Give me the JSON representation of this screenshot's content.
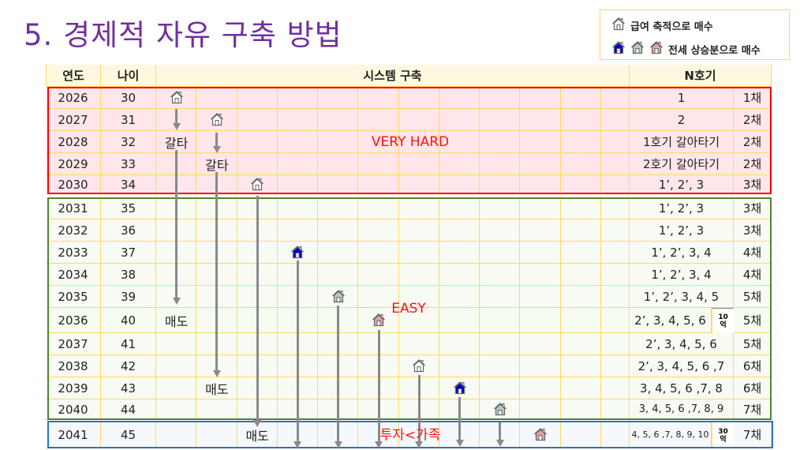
{
  "title": "5. 경제적 자유 구축 방법",
  "legend": {
    "salary_label": "급여 축적으로 매수",
    "jeonse_label": "전세 상승분으로 매수"
  },
  "colors": {
    "title": "#7030A0",
    "hard_box": "#FF0000",
    "easy_box": "#548235",
    "final_box": "#2E75B6",
    "house_white": "#FFFFFF",
    "house_blue": "#0000CC",
    "house_gray": "#B4CCC8",
    "house_pink": "#E0A4A4"
  },
  "table": {
    "headers": [
      "연도",
      "나이",
      "시스템 구축",
      "N호기"
    ],
    "rows": [
      {
        "year": "2026",
        "age": "30",
        "units": "1",
        "count": "1채"
      },
      {
        "year": "2027",
        "age": "31",
        "units": "2",
        "count": "2채"
      },
      {
        "year": "2028",
        "age": "32",
        "units": "1호기 갈아타기",
        "count": "2채"
      },
      {
        "year": "2029",
        "age": "33",
        "units": "2호기 갈아타기",
        "count": "2채"
      },
      {
        "year": "2030",
        "age": "34",
        "units": "1’, 2’, 3",
        "count": "3채"
      },
      {
        "year": "2031",
        "age": "35",
        "units": "1’, 2’, 3",
        "count": "3채"
      },
      {
        "year": "2032",
        "age": "36",
        "units": "1’, 2’, 3",
        "count": "3채"
      },
      {
        "year": "2033",
        "age": "37",
        "units": "1’, 2’, 3, 4",
        "count": "4채"
      },
      {
        "year": "2034",
        "age": "38",
        "units": "1’, 2’, 3, 4",
        "count": "4채"
      },
      {
        "year": "2035",
        "age": "39",
        "units": "1’, 2’, 3, 4, 5",
        "count": "5채"
      },
      {
        "year": "2036",
        "age": "40",
        "units": "2’, 3, 4, 5, 6",
        "count": "5채",
        "note": [
          "10",
          "억"
        ]
      },
      {
        "year": "2037",
        "age": "41",
        "units": "2’, 3, 4, 5, 6",
        "count": "5채"
      },
      {
        "year": "2038",
        "age": "42",
        "units": "2’, 3, 4, 5, 6 ,7",
        "count": "6채"
      },
      {
        "year": "2039",
        "age": "43",
        "units": "3, 4, 5, 6 ,7, 8",
        "count": "6채"
      },
      {
        "year": "2040",
        "age": "44",
        "units": "3, 4, 5, 6 ,7, 8, 9",
        "count": "7채"
      },
      {
        "year": "2041",
        "age": "45",
        "units": "4, 5, 6 ,7, 8, 9, 10",
        "count": "7채",
        "note": [
          "30",
          "억"
        ]
      }
    ]
  },
  "houses": [
    {
      "row": 0,
      "col": 0,
      "type": "white"
    },
    {
      "row": 1,
      "col": 1,
      "type": "white"
    },
    {
      "row": 4,
      "col": 2,
      "type": "white"
    },
    {
      "row": 7,
      "col": 3,
      "type": "blue"
    },
    {
      "row": 9,
      "col": 4,
      "type": "gray"
    },
    {
      "row": 10,
      "col": 5,
      "type": "pink"
    },
    {
      "row": 12,
      "col": 6,
      "type": "white"
    },
    {
      "row": 13,
      "col": 7,
      "type": "blue"
    },
    {
      "row": 14,
      "col": 8,
      "type": "gray"
    },
    {
      "row": 15,
      "col": 9,
      "type": "pink"
    }
  ],
  "cell_labels": [
    {
      "row": 2,
      "col": 0,
      "text": "갈타"
    },
    {
      "row": 3,
      "col": 1,
      "text": "갈타"
    },
    {
      "row": 10,
      "col": 0,
      "text": "매도"
    },
    {
      "row": 13,
      "col": 1,
      "text": "매도"
    },
    {
      "row": 15,
      "col": 2,
      "text": "매도"
    }
  ],
  "annotations": {
    "very_hard": "VERY HARD",
    "easy": "EASY",
    "invest_vs_family": "투자<가족"
  }
}
